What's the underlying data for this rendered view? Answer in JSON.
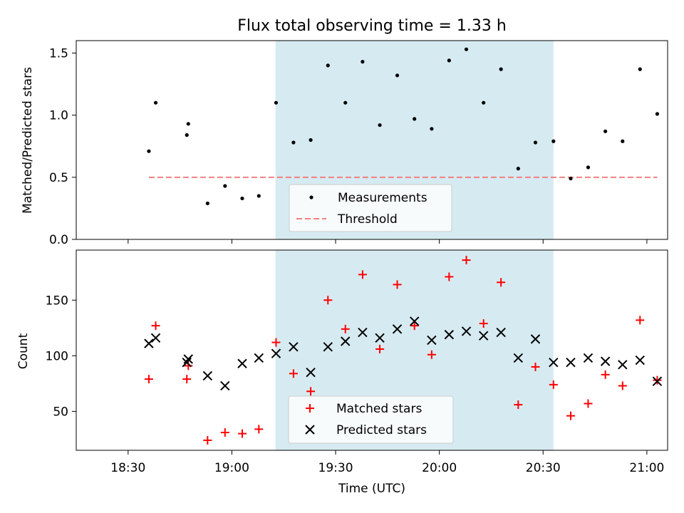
{
  "chart_data": [
    {
      "type": "scatter",
      "title": "Flux total observing time = 1.33 h",
      "xlabel": "",
      "ylabel": "Matched/Predicted stars",
      "xlim": [
        18.25,
        21.1
      ],
      "ylim": [
        0,
        1.6
      ],
      "xticks": [
        18.5,
        19.0,
        19.5,
        20.0,
        20.5,
        21.0
      ],
      "yticks": [
        0.0,
        0.5,
        1.0,
        1.5
      ],
      "ytick_labels": [
        "0.0",
        "0.5",
        "1.0",
        "1.5"
      ],
      "highlight_span": {
        "from": 19.21,
        "to": 20.55,
        "color": "#d4eaf0"
      },
      "threshold": {
        "name": "Threshold",
        "value": 0.5,
        "from": 18.6,
        "to": 21.05,
        "color": "#f08080"
      },
      "series": [
        {
          "name": "Measurements",
          "color": "#000000",
          "x": [
            18.6,
            18.633,
            18.783,
            18.79,
            18.883,
            18.967,
            19.05,
            19.13,
            19.213,
            19.297,
            19.38,
            19.463,
            19.547,
            19.63,
            19.713,
            19.797,
            19.88,
            19.963,
            20.047,
            20.13,
            20.213,
            20.297,
            20.38,
            20.463,
            20.55,
            20.633,
            20.717,
            20.8,
            20.883,
            20.967,
            21.05
          ],
          "y": [
            0.71,
            1.1,
            0.84,
            0.93,
            0.29,
            0.43,
            0.33,
            0.35,
            1.1,
            0.78,
            0.8,
            1.4,
            1.1,
            1.43,
            0.92,
            1.32,
            0.97,
            0.89,
            1.44,
            1.53,
            1.1,
            1.37,
            0.57,
            0.78,
            0.79,
            0.49,
            0.58,
            0.87,
            0.79,
            1.37,
            1.01
          ]
        }
      ],
      "legend": [
        "Measurements",
        "Threshold"
      ],
      "legend_position": "lower center"
    },
    {
      "type": "scatter",
      "title": "",
      "xlabel": "Time (UTC)",
      "ylabel": "Count",
      "xlim": [
        18.25,
        21.1
      ],
      "ylim": [
        15,
        195
      ],
      "xticks": [
        18.5,
        19.0,
        19.5,
        20.0,
        20.5,
        21.0
      ],
      "xtick_labels": [
        "18:30",
        "19:00",
        "19:30",
        "20:00",
        "20:30",
        "21:00"
      ],
      "yticks": [
        50,
        100,
        150
      ],
      "ytick_labels": [
        "50",
        "100",
        "150"
      ],
      "highlight_span": {
        "from": 19.21,
        "to": 20.55,
        "color": "#d4eaf0"
      },
      "series": [
        {
          "name": "Matched stars",
          "color": "#ff0000",
          "marker": "+",
          "x": [
            18.6,
            18.633,
            18.783,
            18.79,
            18.883,
            18.967,
            19.05,
            19.13,
            19.213,
            19.297,
            19.38,
            19.463,
            19.547,
            19.63,
            19.713,
            19.797,
            19.88,
            19.963,
            20.047,
            20.13,
            20.213,
            20.297,
            20.38,
            20.463,
            20.55,
            20.633,
            20.717,
            20.8,
            20.883,
            20.967,
            21.05
          ],
          "y": [
            79,
            127,
            79,
            91,
            24,
            31,
            30,
            34,
            112,
            84,
            68,
            150,
            124,
            173,
            106,
            164,
            127,
            101,
            171,
            186,
            129,
            166,
            56,
            90,
            74,
            46,
            57,
            83,
            73,
            132,
            78
          ]
        },
        {
          "name": "Predicted stars",
          "color": "#000000",
          "marker": "x",
          "x": [
            18.6,
            18.633,
            18.783,
            18.79,
            18.883,
            18.967,
            19.05,
            19.13,
            19.213,
            19.297,
            19.38,
            19.463,
            19.547,
            19.63,
            19.713,
            19.797,
            19.88,
            19.963,
            20.047,
            20.13,
            20.213,
            20.297,
            20.38,
            20.463,
            20.55,
            20.633,
            20.717,
            20.8,
            20.883,
            20.967,
            21.05
          ],
          "y": [
            111,
            116,
            94,
            97,
            82,
            73,
            93,
            98,
            102,
            108,
            85,
            108,
            113,
            121,
            116,
            124,
            131,
            114,
            119,
            122,
            118,
            121,
            98,
            115,
            94,
            94,
            98,
            95,
            92,
            96,
            77
          ]
        }
      ],
      "legend": [
        "Matched stars",
        "Predicted stars"
      ],
      "legend_position": "lower center"
    }
  ]
}
